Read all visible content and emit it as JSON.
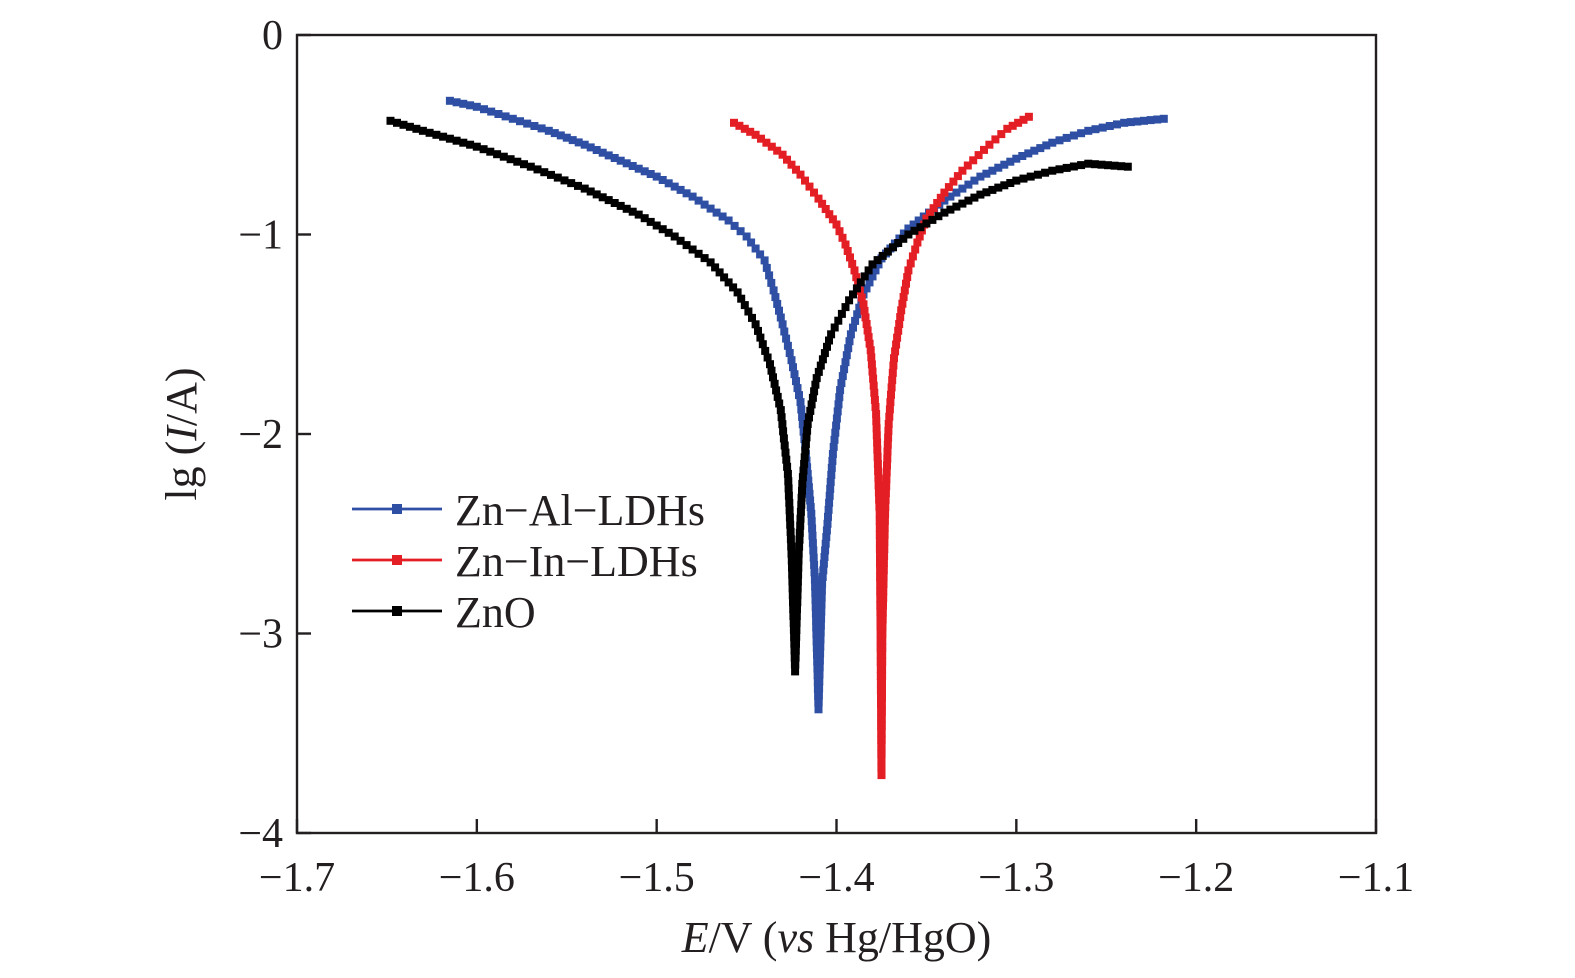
{
  "chart_data": {
    "type": "line",
    "xlabel": {
      "var": "E",
      "rest": "/V (",
      "vs": "vs",
      "ref": " Hg/HgO)"
    },
    "ylabel": {
      "pre": "lg (",
      "var": "I",
      "post": "/A)"
    },
    "xlim": [
      -1.7,
      -1.1
    ],
    "ylim": [
      -4,
      0
    ],
    "xticks": [
      -1.7,
      -1.6,
      -1.5,
      -1.4,
      -1.3,
      -1.2,
      -1.1
    ],
    "yticks": [
      0,
      -1,
      -2,
      -3,
      -4
    ],
    "xtick_labels": [
      "−1.7",
      "−1.6",
      "−1.5",
      "−1.4",
      "−1.3",
      "−1.2",
      "−1.1"
    ],
    "ytick_labels": [
      "0",
      "−1",
      "−2",
      "−3",
      "−4"
    ],
    "grid": false,
    "legend_position": "center-left",
    "series": [
      {
        "name": "Zn−Al−LDHs",
        "color": "#2e4fa3",
        "ecorr": -1.41,
        "min": -3.38,
        "cathodic": [
          [
            -1.615,
            -0.33
          ],
          [
            -1.6,
            -0.36
          ],
          [
            -1.58,
            -0.42
          ],
          [
            -1.56,
            -0.48
          ],
          [
            -1.54,
            -0.55
          ],
          [
            -1.52,
            -0.63
          ],
          [
            -1.5,
            -0.71
          ],
          [
            -1.48,
            -0.81
          ],
          [
            -1.46,
            -0.93
          ],
          [
            -1.45,
            -1.01
          ],
          [
            -1.44,
            -1.13
          ],
          [
            -1.435,
            -1.28
          ],
          [
            -1.43,
            -1.45
          ],
          [
            -1.425,
            -1.63
          ],
          [
            -1.42,
            -1.84
          ],
          [
            -1.417,
            -2.1
          ],
          [
            -1.414,
            -2.4
          ],
          [
            -1.412,
            -2.73
          ]
        ],
        "anodic": [
          [
            -1.408,
            -2.75
          ],
          [
            -1.405,
            -2.45
          ],
          [
            -1.402,
            -2.1
          ],
          [
            -1.398,
            -1.78
          ],
          [
            -1.392,
            -1.5
          ],
          [
            -1.385,
            -1.3
          ],
          [
            -1.375,
            -1.12
          ],
          [
            -1.36,
            -0.97
          ],
          [
            -1.34,
            -0.83
          ],
          [
            -1.32,
            -0.71
          ],
          [
            -1.3,
            -0.62
          ],
          [
            -1.28,
            -0.54
          ],
          [
            -1.26,
            -0.48
          ],
          [
            -1.24,
            -0.44
          ],
          [
            -1.218,
            -0.42
          ]
        ]
      },
      {
        "name": "Zn−In−LDHs",
        "color": "#e31e24",
        "ecorr": -1.375,
        "min": -3.71,
        "cathodic": [
          [
            -1.457,
            -0.44
          ],
          [
            -1.445,
            -0.5
          ],
          [
            -1.43,
            -0.6
          ],
          [
            -1.42,
            -0.7
          ],
          [
            -1.41,
            -0.82
          ],
          [
            -1.4,
            -0.95
          ],
          [
            -1.395,
            -1.05
          ],
          [
            -1.39,
            -1.18
          ],
          [
            -1.385,
            -1.35
          ],
          [
            -1.381,
            -1.58
          ],
          [
            -1.378,
            -1.9
          ],
          [
            -1.376,
            -2.4
          ],
          [
            -1.3755,
            -3.0
          ]
        ],
        "anodic": [
          [
            -1.3745,
            -3.0
          ],
          [
            -1.373,
            -2.4
          ],
          [
            -1.371,
            -1.95
          ],
          [
            -1.368,
            -1.62
          ],
          [
            -1.364,
            -1.38
          ],
          [
            -1.36,
            -1.18
          ],
          [
            -1.355,
            -1.04
          ],
          [
            -1.35,
            -0.92
          ],
          [
            -1.34,
            -0.79
          ],
          [
            -1.33,
            -0.68
          ],
          [
            -1.315,
            -0.55
          ],
          [
            -1.305,
            -0.47
          ],
          [
            -1.293,
            -0.41
          ]
        ]
      },
      {
        "name": "ZnO",
        "color": "#000000",
        "ecorr": -1.423,
        "min": -3.19,
        "cathodic": [
          [
            -1.648,
            -0.43
          ],
          [
            -1.63,
            -0.48
          ],
          [
            -1.6,
            -0.56
          ],
          [
            -1.57,
            -0.66
          ],
          [
            -1.54,
            -0.77
          ],
          [
            -1.51,
            -0.9
          ],
          [
            -1.49,
            -1.01
          ],
          [
            -1.47,
            -1.14
          ],
          [
            -1.455,
            -1.29
          ],
          [
            -1.445,
            -1.45
          ],
          [
            -1.437,
            -1.65
          ],
          [
            -1.431,
            -1.88
          ],
          [
            -1.427,
            -2.2
          ],
          [
            -1.425,
            -2.6
          ]
        ],
        "anodic": [
          [
            -1.421,
            -2.6
          ],
          [
            -1.419,
            -2.25
          ],
          [
            -1.416,
            -1.95
          ],
          [
            -1.411,
            -1.72
          ],
          [
            -1.403,
            -1.5
          ],
          [
            -1.393,
            -1.33
          ],
          [
            -1.38,
            -1.15
          ],
          [
            -1.36,
            -1.0
          ],
          [
            -1.34,
            -0.89
          ],
          [
            -1.32,
            -0.8
          ],
          [
            -1.3,
            -0.73
          ],
          [
            -1.28,
            -0.68
          ],
          [
            -1.26,
            -0.645
          ],
          [
            -1.238,
            -0.66
          ]
        ]
      }
    ]
  }
}
